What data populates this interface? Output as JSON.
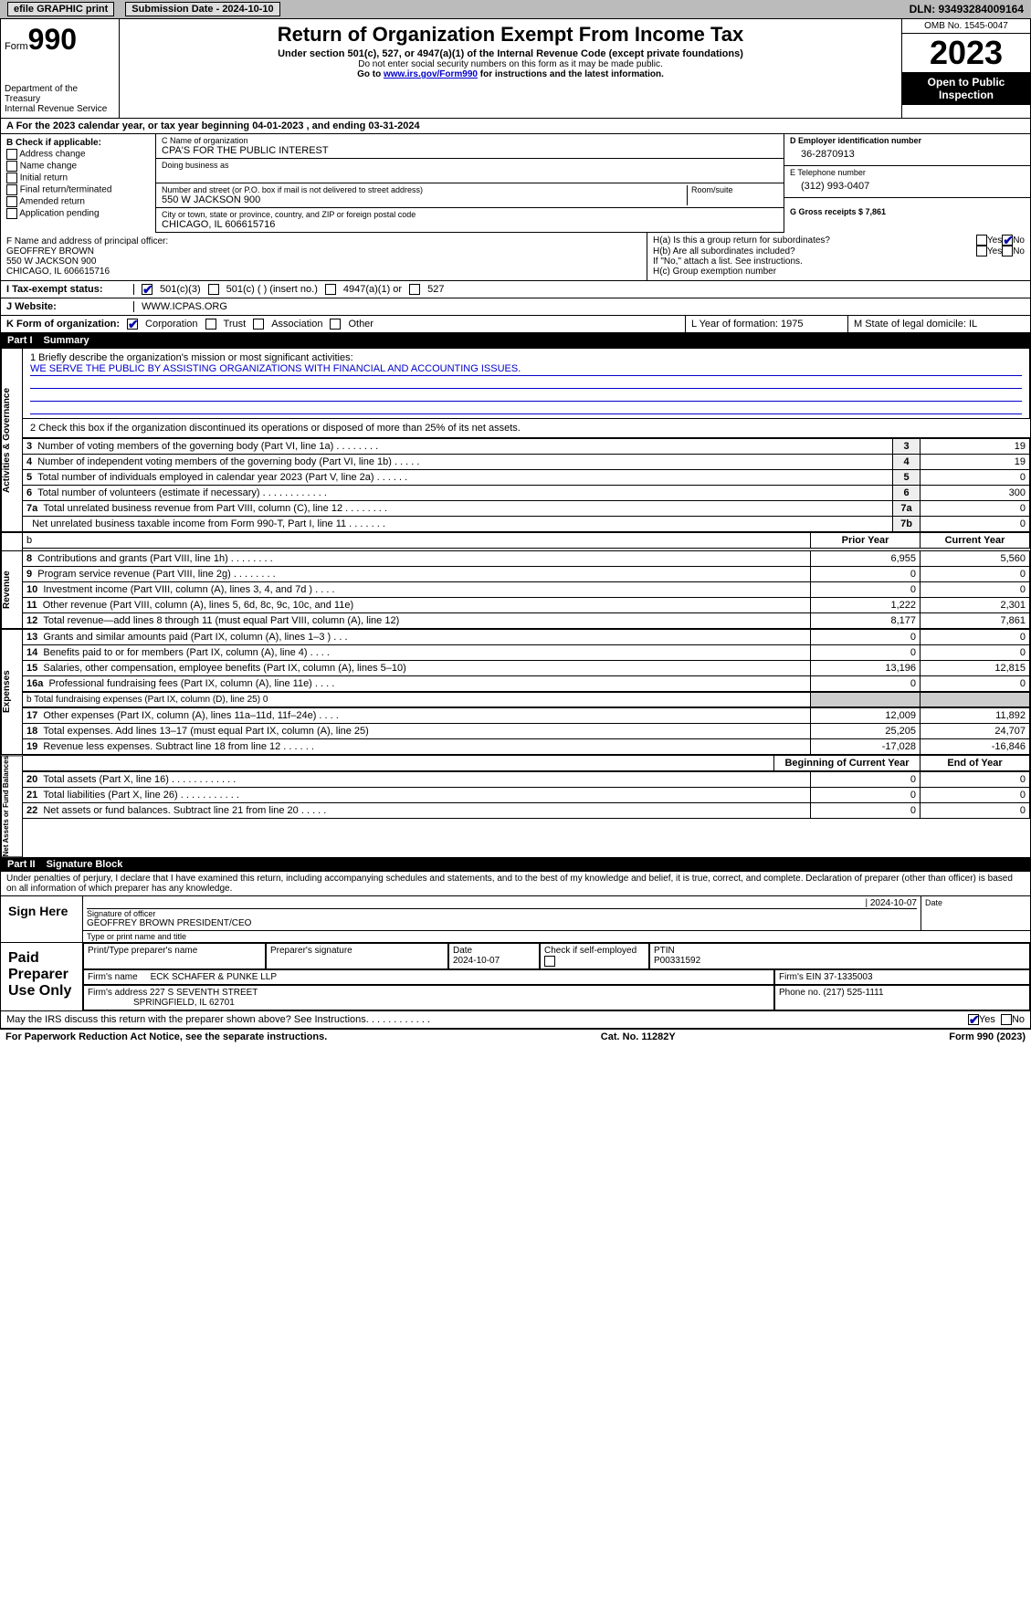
{
  "topbar": {
    "efile": "efile GRAPHIC print",
    "submission": "Submission Date - 2024-10-10",
    "dln": "DLN: 93493284009164"
  },
  "header": {
    "form_label": "Form",
    "form_no": "990",
    "dept": "Department of the Treasury",
    "irs": "Internal Revenue Service",
    "title": "Return of Organization Exempt From Income Tax",
    "sub": "Under section 501(c), 527, or 4947(a)(1) of the Internal Revenue Code (except private foundations)",
    "note1": "Do not enter social security numbers on this form as it may be made public.",
    "note2_pre": "Go to ",
    "note2_link": "www.irs.gov/Form990",
    "note2_post": " for instructions and the latest information.",
    "omb": "OMB No. 1545-0047",
    "year": "2023",
    "inspect": "Open to Public Inspection"
  },
  "row_a": "A For the 2023 calendar year, or tax year beginning 04-01-2023   , and ending 03-31-2024",
  "box_b": {
    "title": "B Check if applicable:",
    "opts": [
      "Address change",
      "Name change",
      "Initial return",
      "Final return/terminated",
      "Amended return",
      "Application pending"
    ]
  },
  "box_c": {
    "name_lbl": "C Name of organization",
    "name": "CPA'S FOR THE PUBLIC INTEREST",
    "dba_lbl": "Doing business as",
    "addr_lbl": "Number and street (or P.O. box if mail is not delivered to street address)",
    "room_lbl": "Room/suite",
    "addr": "550 W JACKSON 900",
    "city_lbl": "City or town, state or province, country, and ZIP or foreign postal code",
    "city": "CHICAGO, IL  606615716"
  },
  "box_d": {
    "lbl": "D Employer identification number",
    "val": "36-2870913"
  },
  "box_e": {
    "lbl": "E Telephone number",
    "val": "(312) 993-0407"
  },
  "box_g": {
    "lbl": "G Gross receipts $ 7,861"
  },
  "box_f": {
    "lbl": "F  Name and address of principal officer:",
    "name": "GEOFFREY BROWN",
    "addr1": "550 W JACKSON 900",
    "addr2": "CHICAGO, IL  606615716"
  },
  "box_h": {
    "ha": "H(a)  Is this a group return for subordinates?",
    "hb": "H(b)  Are all subordinates included?",
    "hb_note": "If \"No,\" attach a list. See instructions.",
    "hc": "H(c)  Group exemption number"
  },
  "tax_status": {
    "lbl": "I   Tax-exempt status:",
    "o1": "501(c)(3)",
    "o2": "501(c) (  ) (insert no.)",
    "o3": "4947(a)(1) or",
    "o4": "527"
  },
  "website": {
    "lbl": "J   Website:",
    "val": "WWW.ICPAS.ORG"
  },
  "form_of_org": {
    "lbl": "K Form of organization:",
    "opts": [
      "Corporation",
      "Trust",
      "Association",
      "Other"
    ]
  },
  "box_l": "L Year of formation: 1975",
  "box_m": "M State of legal domicile: IL",
  "part1": {
    "label": "Part I",
    "title": "Summary"
  },
  "mission": {
    "q": "1   Briefly describe the organization's mission or most significant activities:",
    "a": "WE SERVE THE PUBLIC BY ASSISTING ORGANIZATIONS WITH FINANCIAL AND ACCOUNTING ISSUES."
  },
  "summary": {
    "side1": "Activities & Governance",
    "line2": "2    Check this box          if the organization discontinued its operations or disposed of more than 25% of its net assets.",
    "rows_ag": [
      {
        "n": "3",
        "t": "Number of voting members of the governing body (Part VI, line 1a)   .    .    .    .    .    .    .    .",
        "box": "3",
        "v": "19"
      },
      {
        "n": "4",
        "t": "Number of independent voting members of the governing body (Part VI, line 1b)   .    .    .    .    .",
        "box": "4",
        "v": "19"
      },
      {
        "n": "5",
        "t": "Total number of individuals employed in calendar year 2023 (Part V, line 2a)    .    .    .    .    .    .",
        "box": "5",
        "v": "0"
      },
      {
        "n": "6",
        "t": "Total number of volunteers (estimate if necessary)     .    .    .    .    .    .    .    .    .    .    .    .",
        "box": "6",
        "v": "300"
      },
      {
        "n": "7a",
        "t": "Total unrelated business revenue from Part VIII, column (C), line 12    .    .    .    .    .    .    .    .",
        "box": "7a",
        "v": "0"
      },
      {
        "n": "",
        "t": "Net unrelated business taxable income from Form 990-T, Part I, line 11   .    .    .    .    .    .    .",
        "box": "7b",
        "v": "0"
      }
    ],
    "col_hdr_prior": "Prior Year",
    "col_hdr_curr": "Current Year",
    "side2": "Revenue",
    "rows_rev": [
      {
        "n": "8",
        "t": "Contributions and grants (Part VIII, line 1h)    .    .    .    .    .    .    .    .",
        "p": "6,955",
        "c": "5,560"
      },
      {
        "n": "9",
        "t": "Program service revenue (Part VIII, line 2g)    .    .    .    .    .    .    .    .",
        "p": "0",
        "c": "0"
      },
      {
        "n": "10",
        "t": "Investment income (Part VIII, column (A), lines 3, 4, and 7d )    .    .    .    .",
        "p": "0",
        "c": "0"
      },
      {
        "n": "11",
        "t": "Other revenue (Part VIII, column (A), lines 5, 6d, 8c, 9c, 10c, and 11e)",
        "p": "1,222",
        "c": "2,301"
      },
      {
        "n": "12",
        "t": "Total revenue—add lines 8 through 11 (must equal Part VIII, column (A), line 12)",
        "p": "8,177",
        "c": "7,861"
      }
    ],
    "side3": "Expenses",
    "rows_exp": [
      {
        "n": "13",
        "t": "Grants and similar amounts paid (Part IX, column (A), lines 1–3 )   .    .    .",
        "p": "0",
        "c": "0"
      },
      {
        "n": "14",
        "t": "Benefits paid to or for members (Part IX, column (A), line 4)    .    .    .    .",
        "p": "0",
        "c": "0"
      },
      {
        "n": "15",
        "t": "Salaries, other compensation, employee benefits (Part IX, column (A), lines 5–10)",
        "p": "13,196",
        "c": "12,815"
      },
      {
        "n": "16a",
        "t": "Professional fundraising fees (Part IX, column (A), line 11e)    .    .    .    .",
        "p": "0",
        "c": "0"
      }
    ],
    "line16b": "b   Total fundraising expenses (Part IX, column (D), line 25) 0",
    "rows_exp2": [
      {
        "n": "17",
        "t": "Other expenses (Part IX, column (A), lines 11a–11d, 11f–24e)    .    .    .    .",
        "p": "12,009",
        "c": "11,892"
      },
      {
        "n": "18",
        "t": "Total expenses. Add lines 13–17 (must equal Part IX, column (A), line 25)",
        "p": "25,205",
        "c": "24,707"
      },
      {
        "n": "19",
        "t": "Revenue less expenses. Subtract line 18 from line 12    .    .    .    .    .    .",
        "p": "-17,028",
        "c": "-16,846"
      }
    ],
    "side4": "Net Assets or Fund Balances",
    "col_hdr_beg": "Beginning of Current Year",
    "col_hdr_end": "End of Year",
    "rows_na": [
      {
        "n": "20",
        "t": "Total assets (Part X, line 16)    .    .    .    .    .    .    .    .    .    .    .    .",
        "p": "0",
        "c": "0"
      },
      {
        "n": "21",
        "t": "Total liabilities (Part X, line 26)    .    .    .    .    .    .    .    .    .    .    .",
        "p": "0",
        "c": "0"
      },
      {
        "n": "22",
        "t": "Net assets or fund balances. Subtract line 21 from line 20    .    .    .    .    .",
        "p": "0",
        "c": "0"
      }
    ]
  },
  "part2": {
    "label": "Part II",
    "title": "Signature Block"
  },
  "declaration": "Under penalties of perjury, I declare that I have examined this return, including accompanying schedules and statements, and to the best of my knowledge and belief, it is true, correct, and complete. Declaration of preparer (other than officer) is based on all information of which preparer has any knowledge.",
  "sign": {
    "here": "Sign Here",
    "date": "2024-10-07",
    "sig_lbl": "Signature of officer",
    "officer": "GEOFFREY BROWN PRESIDENT/CEO",
    "type_lbl": "Type or print name and title",
    "date_lbl": "Date"
  },
  "preparer": {
    "here": "Paid Preparer Use Only",
    "h1": "Print/Type preparer's name",
    "h2": "Preparer's signature",
    "h3": "Date",
    "h4": "Check        if self-employed",
    "h5": "PTIN",
    "date": "2024-10-07",
    "ptin": "P00331592",
    "firm_lbl": "Firm's name",
    "firm": "ECK SCHAFER & PUNKE LLP",
    "ein_lbl": "Firm's EIN",
    "ein": "37-1335003",
    "addr_lbl": "Firm's address",
    "addr1": "227 S SEVENTH STREET",
    "addr2": "SPRINGFIELD, IL  62701",
    "phone_lbl": "Phone no.",
    "phone": "(217) 525-1111"
  },
  "discuss": "May the IRS discuss this return with the preparer shown above? See Instructions.    .    .    .    .    .    .    .    .    .    .    .",
  "footer": {
    "pra": "For Paperwork Reduction Act Notice, see the separate instructions.",
    "cat": "Cat. No. 11282Y",
    "form": "Form 990 (2023)"
  }
}
